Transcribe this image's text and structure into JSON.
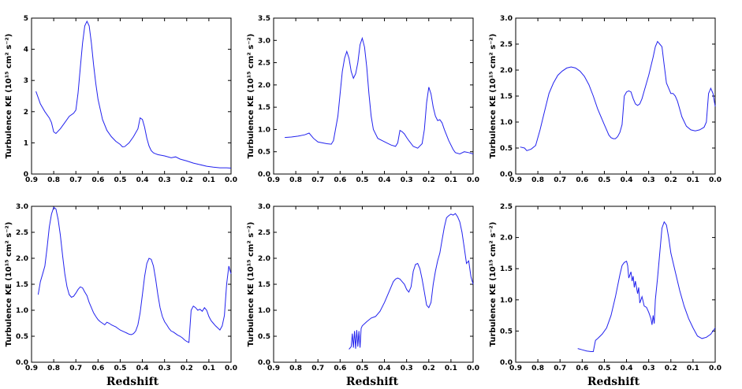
{
  "chart_data": [
    {
      "type": "line",
      "ylabel": "Turbulence KE (10¹⁵ cm² s⁻²)",
      "xlim": [
        0.9,
        0.0
      ],
      "ylim": [
        0,
        5
      ],
      "yticks": [
        "0",
        "1",
        "2",
        "3",
        "4",
        "5"
      ],
      "xticks": [
        "0.9",
        "0.8",
        "0.7",
        "0.6",
        "0.5",
        "0.4",
        "0.3",
        "0.2",
        "0.1",
        "0.0"
      ],
      "color": "#2222ee",
      "x": [
        0.88,
        0.86,
        0.84,
        0.82,
        0.81,
        0.8,
        0.79,
        0.77,
        0.75,
        0.73,
        0.71,
        0.7,
        0.69,
        0.68,
        0.67,
        0.66,
        0.65,
        0.64,
        0.63,
        0.62,
        0.61,
        0.6,
        0.58,
        0.56,
        0.54,
        0.52,
        0.5,
        0.49,
        0.48,
        0.46,
        0.44,
        0.42,
        0.41,
        0.4,
        0.39,
        0.38,
        0.37,
        0.36,
        0.35,
        0.34,
        0.33,
        0.3,
        0.27,
        0.25,
        0.23,
        0.2,
        0.17,
        0.14,
        0.11,
        0.08,
        0.05,
        0.02,
        0.0
      ],
      "y": [
        2.65,
        2.25,
        2.0,
        1.8,
        1.65,
        1.35,
        1.3,
        1.45,
        1.65,
        1.85,
        1.95,
        2.05,
        2.6,
        3.4,
        4.2,
        4.75,
        4.9,
        4.75,
        4.2,
        3.5,
        2.9,
        2.4,
        1.75,
        1.4,
        1.2,
        1.05,
        0.95,
        0.87,
        0.88,
        1.0,
        1.2,
        1.45,
        1.8,
        1.75,
        1.5,
        1.15,
        0.9,
        0.75,
        0.68,
        0.65,
        0.62,
        0.58,
        0.52,
        0.55,
        0.48,
        0.42,
        0.35,
        0.3,
        0.25,
        0.22,
        0.2,
        0.2,
        0.19
      ]
    },
    {
      "type": "line",
      "ylabel": "Turbulence KE (10¹⁵ cm² s⁻²)",
      "xlim": [
        0.9,
        0.0
      ],
      "ylim": [
        0,
        3.5
      ],
      "yticks": [
        "0.0",
        "0.5",
        "1.0",
        "1.5",
        "2.0",
        "2.5",
        "3.0",
        "3.5"
      ],
      "xticks": [
        "0.9",
        "0.8",
        "0.7",
        "0.6",
        "0.5",
        "0.4",
        "0.3",
        "0.2",
        "0.1",
        "0.0"
      ],
      "color": "#2222ee",
      "x": [
        0.85,
        0.82,
        0.79,
        0.76,
        0.74,
        0.72,
        0.7,
        0.68,
        0.66,
        0.64,
        0.63,
        0.61,
        0.6,
        0.59,
        0.58,
        0.57,
        0.56,
        0.55,
        0.54,
        0.53,
        0.52,
        0.51,
        0.5,
        0.49,
        0.48,
        0.47,
        0.46,
        0.45,
        0.43,
        0.41,
        0.39,
        0.37,
        0.35,
        0.34,
        0.33,
        0.32,
        0.31,
        0.3,
        0.29,
        0.27,
        0.25,
        0.23,
        0.22,
        0.21,
        0.2,
        0.19,
        0.18,
        0.17,
        0.16,
        0.15,
        0.14,
        0.13,
        0.11,
        0.09,
        0.08,
        0.06,
        0.04,
        0.02,
        0.0
      ],
      "y": [
        0.82,
        0.83,
        0.85,
        0.88,
        0.92,
        0.8,
        0.72,
        0.7,
        0.68,
        0.67,
        0.75,
        1.3,
        1.8,
        2.3,
        2.6,
        2.75,
        2.6,
        2.3,
        2.15,
        2.25,
        2.5,
        2.9,
        3.05,
        2.85,
        2.4,
        1.8,
        1.3,
        1.0,
        0.8,
        0.75,
        0.7,
        0.65,
        0.62,
        0.7,
        0.98,
        0.95,
        0.9,
        0.82,
        0.75,
        0.62,
        0.58,
        0.68,
        1.0,
        1.6,
        1.95,
        1.8,
        1.5,
        1.3,
        1.2,
        1.22,
        1.15,
        1.0,
        0.75,
        0.55,
        0.48,
        0.45,
        0.5,
        0.48,
        0.45
      ]
    },
    {
      "type": "line",
      "ylabel": "Turbulence KE (10¹⁵ cm² s⁻²)",
      "xlim": [
        0.9,
        0.0
      ],
      "ylim": [
        0,
        3.0
      ],
      "yticks": [
        "0.0",
        "0.5",
        "1.0",
        "1.5",
        "2.0",
        "2.5",
        "3.0"
      ],
      "xticks": [
        "0.9",
        "0.8",
        "0.7",
        "0.6",
        "0.5",
        "0.4",
        "0.3",
        "0.2",
        "0.1",
        "0.0"
      ],
      "color": "#2222ee",
      "x": [
        0.88,
        0.86,
        0.85,
        0.83,
        0.81,
        0.79,
        0.77,
        0.75,
        0.73,
        0.71,
        0.69,
        0.67,
        0.65,
        0.63,
        0.61,
        0.59,
        0.57,
        0.55,
        0.53,
        0.51,
        0.5,
        0.49,
        0.48,
        0.47,
        0.46,
        0.45,
        0.44,
        0.43,
        0.42,
        0.41,
        0.4,
        0.39,
        0.38,
        0.37,
        0.36,
        0.35,
        0.34,
        0.33,
        0.32,
        0.3,
        0.28,
        0.27,
        0.26,
        0.25,
        0.24,
        0.23,
        0.22,
        0.21,
        0.2,
        0.19,
        0.18,
        0.17,
        0.16,
        0.15,
        0.13,
        0.11,
        0.09,
        0.07,
        0.05,
        0.04,
        0.03,
        0.02,
        0.01,
        0.0
      ],
      "y": [
        0.52,
        0.5,
        0.45,
        0.48,
        0.55,
        0.85,
        1.2,
        1.55,
        1.75,
        1.9,
        1.98,
        2.04,
        2.06,
        2.04,
        1.98,
        1.88,
        1.72,
        1.5,
        1.25,
        1.05,
        0.95,
        0.85,
        0.75,
        0.7,
        0.68,
        0.68,
        0.72,
        0.8,
        0.95,
        1.5,
        1.58,
        1.6,
        1.58,
        1.45,
        1.35,
        1.32,
        1.35,
        1.45,
        1.6,
        1.9,
        2.25,
        2.45,
        2.55,
        2.5,
        2.45,
        2.1,
        1.75,
        1.65,
        1.55,
        1.55,
        1.5,
        1.4,
        1.25,
        1.1,
        0.92,
        0.85,
        0.83,
        0.85,
        0.9,
        1.0,
        1.55,
        1.65,
        1.55,
        1.3
      ]
    },
    {
      "type": "line",
      "ylabel": "Turbulence KE (10¹⁵ cm² s⁻²)",
      "xlim": [
        0.9,
        0.0
      ],
      "ylim": [
        0.0,
        3.0
      ],
      "yticks": [
        "0.0",
        "0.5",
        "1.0",
        "1.5",
        "2.0",
        "2.5",
        "3.0"
      ],
      "xticks": [
        "0.9",
        "0.8",
        "0.7",
        "0.6",
        "0.5",
        "0.4",
        "0.3",
        "0.2",
        "0.1",
        "0.0"
      ],
      "color": "#2222ee",
      "x": [
        0.87,
        0.86,
        0.85,
        0.84,
        0.83,
        0.82,
        0.81,
        0.8,
        0.79,
        0.78,
        0.77,
        0.76,
        0.75,
        0.74,
        0.73,
        0.72,
        0.71,
        0.7,
        0.69,
        0.68,
        0.67,
        0.66,
        0.65,
        0.64,
        0.63,
        0.62,
        0.61,
        0.6,
        0.59,
        0.58,
        0.57,
        0.56,
        0.55,
        0.54,
        0.53,
        0.52,
        0.51,
        0.5,
        0.49,
        0.48,
        0.47,
        0.46,
        0.45,
        0.44,
        0.43,
        0.42,
        0.41,
        0.4,
        0.39,
        0.38,
        0.37,
        0.36,
        0.35,
        0.34,
        0.33,
        0.32,
        0.31,
        0.3,
        0.29,
        0.28,
        0.27,
        0.26,
        0.25,
        0.24,
        0.23,
        0.22,
        0.21,
        0.2,
        0.19,
        0.18,
        0.17,
        0.16,
        0.15,
        0.14,
        0.13,
        0.12,
        0.11,
        0.1,
        0.09,
        0.08,
        0.07,
        0.06,
        0.05,
        0.04,
        0.03,
        0.02,
        0.01,
        0.0
      ],
      "y": [
        1.3,
        1.55,
        1.7,
        1.85,
        2.2,
        2.6,
        2.85,
        2.98,
        2.95,
        2.75,
        2.45,
        2.05,
        1.7,
        1.45,
        1.3,
        1.25,
        1.27,
        1.33,
        1.4,
        1.45,
        1.43,
        1.35,
        1.28,
        1.15,
        1.05,
        0.95,
        0.88,
        0.82,
        0.78,
        0.75,
        0.72,
        0.77,
        0.75,
        0.72,
        0.7,
        0.68,
        0.65,
        0.62,
        0.6,
        0.58,
        0.56,
        0.54,
        0.53,
        0.55,
        0.6,
        0.72,
        0.95,
        1.3,
        1.65,
        1.9,
        2.0,
        1.98,
        1.85,
        1.6,
        1.3,
        1.05,
        0.88,
        0.78,
        0.72,
        0.65,
        0.6,
        0.58,
        0.55,
        0.52,
        0.5,
        0.47,
        0.43,
        0.4,
        0.38,
        1.0,
        1.08,
        1.05,
        1.0,
        1.02,
        0.98,
        1.05,
        1.0,
        0.88,
        0.8,
        0.75,
        0.7,
        0.66,
        0.62,
        0.7,
        0.9,
        1.5,
        1.85,
        1.7
      ]
    },
    {
      "type": "line",
      "ylabel": "Turbulence KE (10¹⁵ cm² s⁻²)",
      "xlim": [
        0.9,
        0.0
      ],
      "ylim": [
        0.0,
        3.0
      ],
      "yticks": [
        "0.0",
        "0.5",
        "1.0",
        "1.5",
        "2.0",
        "2.5",
        "3.0"
      ],
      "xticks": [
        "0.9",
        "0.8",
        "0.7",
        "0.6",
        "0.5",
        "0.4",
        "0.3",
        "0.2",
        "0.1",
        "0.0"
      ],
      "color": "#2222ee",
      "x": [
        0.56,
        0.55,
        0.545,
        0.54,
        0.535,
        0.53,
        0.525,
        0.52,
        0.515,
        0.51,
        0.505,
        0.5,
        0.48,
        0.46,
        0.44,
        0.42,
        0.4,
        0.38,
        0.36,
        0.35,
        0.34,
        0.33,
        0.32,
        0.31,
        0.3,
        0.29,
        0.28,
        0.27,
        0.26,
        0.25,
        0.245,
        0.24,
        0.235,
        0.23,
        0.22,
        0.21,
        0.2,
        0.19,
        0.18,
        0.17,
        0.16,
        0.15,
        0.14,
        0.13,
        0.12,
        0.11,
        0.1,
        0.09,
        0.08,
        0.07,
        0.06,
        0.05,
        0.04,
        0.03,
        0.02,
        0.01,
        0.0
      ],
      "y": [
        0.25,
        0.3,
        0.55,
        0.28,
        0.6,
        0.26,
        0.62,
        0.3,
        0.6,
        0.28,
        0.65,
        0.7,
        0.78,
        0.85,
        0.88,
        0.98,
        1.15,
        1.35,
        1.55,
        1.6,
        1.62,
        1.6,
        1.55,
        1.5,
        1.4,
        1.35,
        1.45,
        1.75,
        1.88,
        1.9,
        1.85,
        1.8,
        1.7,
        1.6,
        1.35,
        1.1,
        1.05,
        1.15,
        1.5,
        1.75,
        1.95,
        2.1,
        2.35,
        2.6,
        2.78,
        2.82,
        2.85,
        2.83,
        2.86,
        2.8,
        2.7,
        2.5,
        2.2,
        1.9,
        1.95,
        1.65,
        1.5
      ]
    },
    {
      "type": "line",
      "ylabel": "Turbulence KE (10¹⁵ cm² s⁻²)",
      "xlim": [
        0.9,
        0.0
      ],
      "ylim": [
        0.0,
        2.5
      ],
      "yticks": [
        "0.0",
        "0.5",
        "1.0",
        "1.5",
        "2.0",
        "2.5"
      ],
      "xticks": [
        "0.9",
        "0.8",
        "0.7",
        "0.6",
        "0.5",
        "0.4",
        "0.3",
        "0.2",
        "0.1",
        "0.0"
      ],
      "color": "#2222ee",
      "x": [
        0.62,
        0.6,
        0.58,
        0.56,
        0.55,
        0.54,
        0.53,
        0.51,
        0.49,
        0.47,
        0.45,
        0.43,
        0.42,
        0.41,
        0.4,
        0.395,
        0.39,
        0.38,
        0.375,
        0.37,
        0.365,
        0.36,
        0.35,
        0.345,
        0.34,
        0.33,
        0.32,
        0.31,
        0.3,
        0.29,
        0.285,
        0.28,
        0.275,
        0.27,
        0.26,
        0.25,
        0.24,
        0.23,
        0.22,
        0.21,
        0.2,
        0.18,
        0.16,
        0.14,
        0.12,
        0.1,
        0.08,
        0.06,
        0.04,
        0.02,
        0.0
      ],
      "y": [
        0.22,
        0.2,
        0.18,
        0.17,
        0.17,
        0.35,
        0.38,
        0.45,
        0.55,
        0.75,
        1.05,
        1.4,
        1.55,
        1.6,
        1.62,
        1.55,
        1.35,
        1.45,
        1.3,
        1.38,
        1.2,
        1.3,
        1.1,
        1.2,
        0.95,
        1.05,
        0.9,
        0.88,
        0.8,
        0.7,
        0.6,
        0.75,
        0.62,
        1.0,
        1.35,
        1.75,
        2.15,
        2.25,
        2.2,
        2.0,
        1.75,
        1.45,
        1.15,
        0.9,
        0.7,
        0.55,
        0.42,
        0.38,
        0.4,
        0.45,
        0.55
      ]
    }
  ],
  "xlabels": [
    "Redshift",
    "Redshift",
    "Redshift"
  ]
}
